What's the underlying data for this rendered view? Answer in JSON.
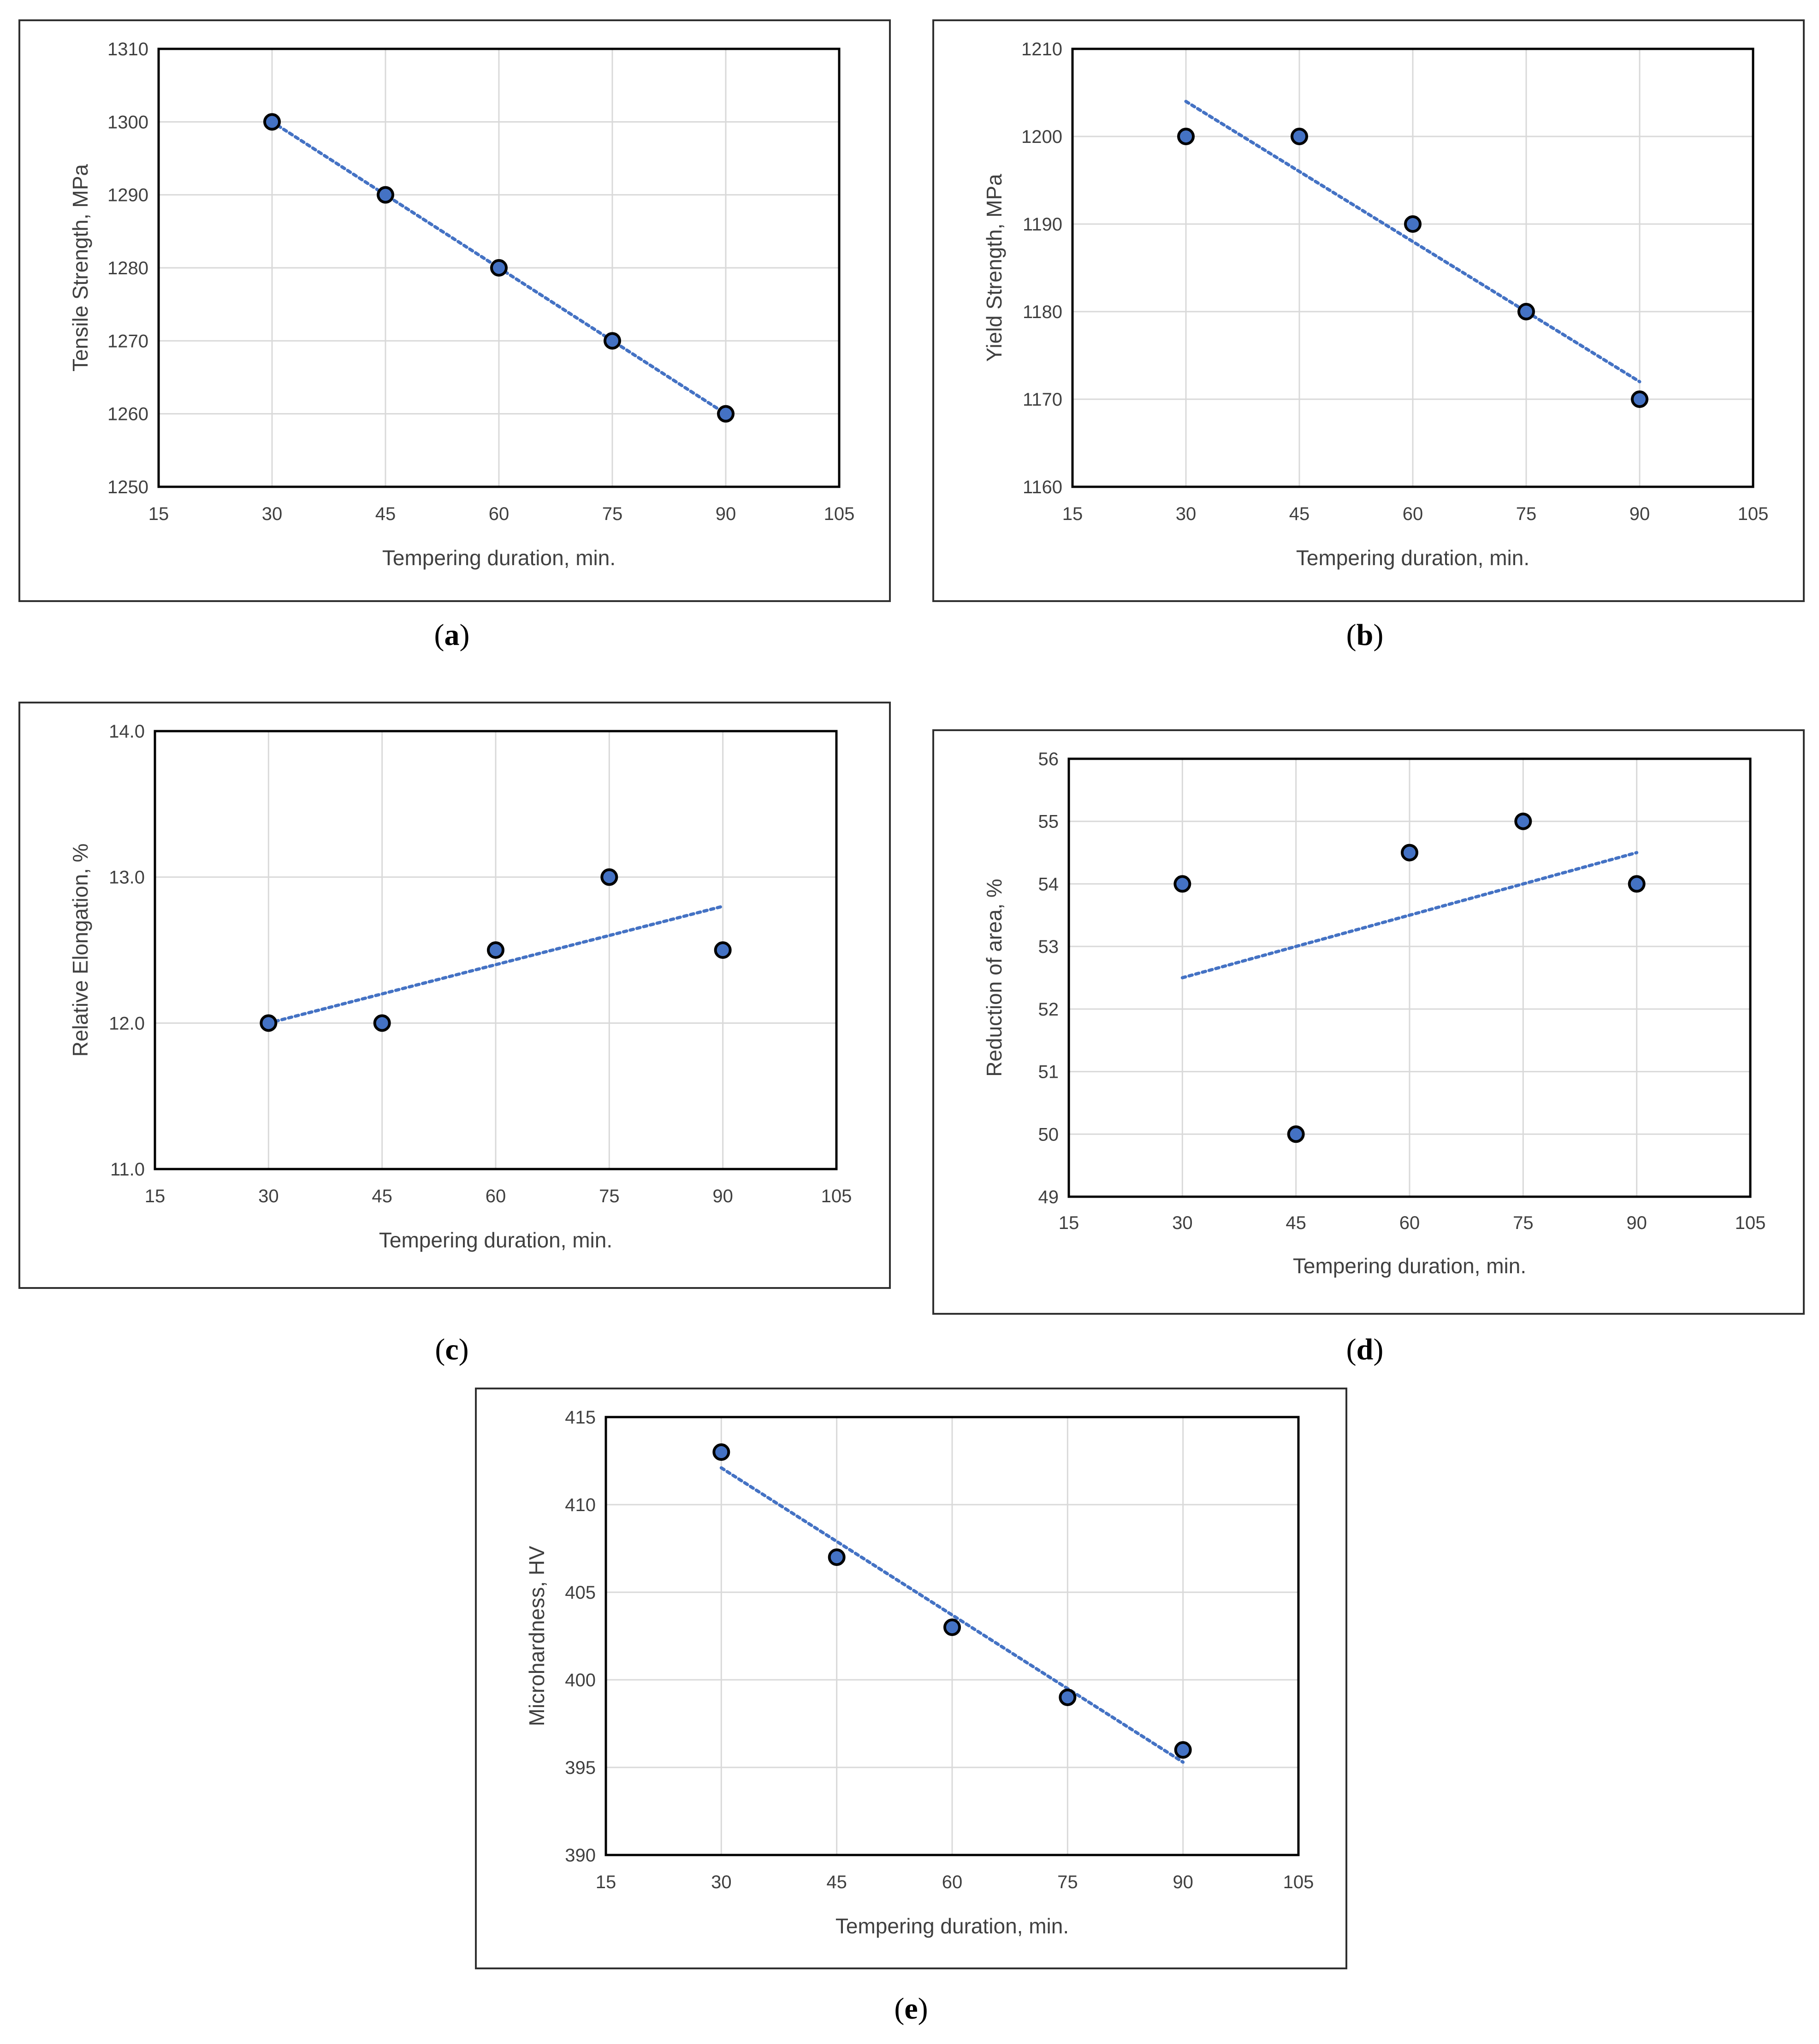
{
  "figure": {
    "captions": [
      "a",
      "b",
      "c",
      "d",
      "e"
    ]
  },
  "chart_data": [
    {
      "id": "a",
      "type": "scatter",
      "trendline": "linear",
      "xlabel": "Tempering duration, min.",
      "ylabel": "Tensile Strength, MPa",
      "xlim": [
        15,
        105
      ],
      "ylim": [
        1250,
        1310
      ],
      "xticks": [
        15,
        30,
        45,
        60,
        75,
        90,
        105
      ],
      "yticks": [
        1250,
        1260,
        1270,
        1280,
        1290,
        1300,
        1310
      ],
      "ytick_labels": [
        "1250",
        "1260",
        "1270",
        "1280",
        "1290",
        "1300",
        "1310"
      ],
      "x": [
        30,
        45,
        60,
        75,
        90
      ],
      "y": [
        1300,
        1290,
        1280,
        1270,
        1260
      ],
      "trend": [
        [
          30,
          1300
        ],
        [
          90,
          1260
        ]
      ],
      "grid": true
    },
    {
      "id": "b",
      "type": "scatter",
      "trendline": "linear",
      "xlabel": "Tempering duration, min.",
      "ylabel": "Yield Strength, MPa",
      "xlim": [
        15,
        105
      ],
      "ylim": [
        1160,
        1210
      ],
      "xticks": [
        15,
        30,
        45,
        60,
        75,
        90,
        105
      ],
      "yticks": [
        1160,
        1170,
        1180,
        1190,
        1200,
        1210
      ],
      "ytick_labels": [
        "1160",
        "1170",
        "1180",
        "1190",
        "1200",
        "1210"
      ],
      "x": [
        30,
        45,
        60,
        75,
        90
      ],
      "y": [
        1200,
        1200,
        1190,
        1180,
        1170
      ],
      "trend": [
        [
          30,
          1204
        ],
        [
          90,
          1172
        ]
      ],
      "grid": true
    },
    {
      "id": "c",
      "type": "scatter",
      "trendline": "linear",
      "xlabel": "Tempering duration, min.",
      "ylabel": "Relative Elongation, %",
      "xlim": [
        15,
        105
      ],
      "ylim": [
        11,
        14
      ],
      "xticks": [
        15,
        30,
        45,
        60,
        75,
        90,
        105
      ],
      "yticks": [
        11,
        12,
        13,
        14
      ],
      "ytick_labels": [
        "11.0",
        "12.0",
        "13.0",
        "14.0"
      ],
      "x": [
        30,
        45,
        60,
        75,
        90
      ],
      "y": [
        12.0,
        12.0,
        12.5,
        13.0,
        12.5
      ],
      "trend": [
        [
          30,
          12.0
        ],
        [
          90,
          12.8
        ]
      ],
      "grid": true
    },
    {
      "id": "d",
      "type": "scatter",
      "trendline": "linear",
      "xlabel": "Tempering duration, min.",
      "ylabel": "Reduction of area, %",
      "xlim": [
        15,
        105
      ],
      "ylim": [
        49,
        56
      ],
      "xticks": [
        15,
        30,
        45,
        60,
        75,
        90,
        105
      ],
      "yticks": [
        49,
        50,
        51,
        52,
        53,
        54,
        55,
        56
      ],
      "ytick_labels": [
        "49",
        "50",
        "51",
        "52",
        "53",
        "54",
        "55",
        "56"
      ],
      "x": [
        30,
        45,
        60,
        75,
        90
      ],
      "y": [
        54,
        50,
        54.5,
        55,
        54
      ],
      "trend": [
        [
          30,
          52.5
        ],
        [
          90,
          54.5
        ]
      ],
      "grid": true
    },
    {
      "id": "e",
      "type": "scatter",
      "trendline": "linear",
      "xlabel": "Tempering duration, min.",
      "ylabel": "Microhardness, HV",
      "xlim": [
        15,
        105
      ],
      "ylim": [
        390,
        415
      ],
      "xticks": [
        15,
        30,
        45,
        60,
        75,
        90,
        105
      ],
      "yticks": [
        390,
        395,
        400,
        405,
        410,
        415
      ],
      "ytick_labels": [
        "390",
        "395",
        "400",
        "405",
        "410",
        "415"
      ],
      "x": [
        30,
        45,
        60,
        75,
        90
      ],
      "y": [
        413,
        407,
        403,
        399,
        396
      ],
      "trend": [
        [
          30,
          412.1
        ],
        [
          90,
          395.3
        ]
      ],
      "grid": true
    }
  ],
  "colors": {
    "marker_fill": "#4472C4",
    "marker_edge": "#000000",
    "trendline": "#4472C4",
    "grid": "#D9D9D9",
    "plot_frame": "#000000"
  }
}
